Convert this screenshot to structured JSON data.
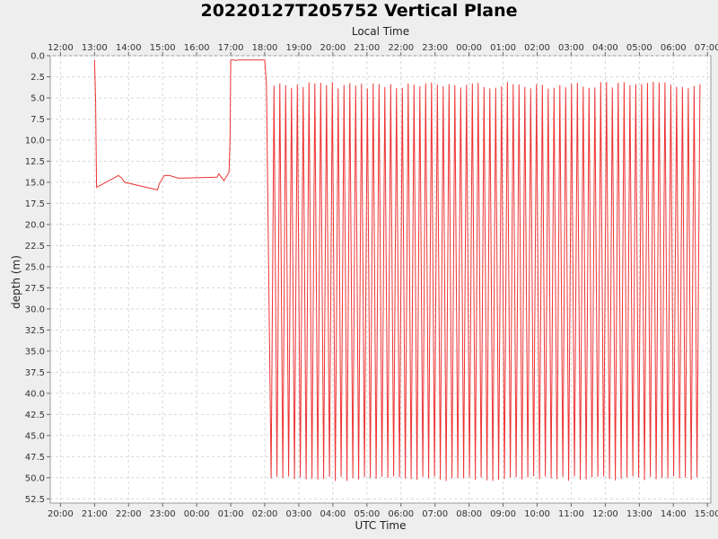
{
  "chart_data": {
    "type": "line",
    "title": "20220127T205752 Vertical Plane",
    "xlabel": "UTC Time",
    "x2label": "Local Time",
    "ylabel": "depth (m)",
    "ylim": [
      0,
      53
    ],
    "y_inverted": true,
    "grid": true,
    "line_color": "#ee3333",
    "x_range_hours": [
      19.7,
      39.1
    ],
    "x_ticks": [
      "20:00",
      "21:00",
      "22:00",
      "23:00",
      "00:00",
      "01:00",
      "02:00",
      "03:00",
      "04:00",
      "05:00",
      "06:00",
      "07:00",
      "08:00",
      "09:00",
      "10:00",
      "11:00",
      "12:00",
      "13:00",
      "14:00",
      "15:00"
    ],
    "x2_ticks": [
      "12:00",
      "13:00",
      "14:00",
      "15:00",
      "16:00",
      "17:00",
      "18:00",
      "19:00",
      "20:00",
      "21:00",
      "22:00",
      "23:00",
      "00:00",
      "01:00",
      "02:00",
      "03:00",
      "04:00",
      "05:00",
      "06:00",
      "07:00"
    ],
    "y_ticks": [
      "0.0",
      "2.5",
      "5.0",
      "7.5",
      "10.0",
      "12.5",
      "15.0",
      "17.5",
      "20.0",
      "22.5",
      "25.0",
      "27.5",
      "30.0",
      "32.5",
      "35.0",
      "37.5",
      "40.0",
      "42.5",
      "45.0",
      "47.5",
      "50.0",
      "52.5"
    ],
    "series": [
      {
        "x_hours_utc": [
          21.0,
          21.03,
          21.06,
          21.7,
          21.8,
          21.88,
          22.85,
          22.9,
          23.05,
          23.2,
          23.45,
          23.6,
          24.6,
          24.65,
          24.8,
          24.95,
          24.98,
          25.0,
          25.1,
          25.15,
          25.2,
          25.3,
          25.5,
          25.8,
          26.0
        ],
        "depth": [
          0.5,
          5.0,
          15.6,
          14.2,
          14.5,
          15.0,
          15.9,
          15.2,
          14.2,
          14.2,
          14.5,
          14.5,
          14.4,
          14.0,
          14.8,
          13.8,
          10.0,
          0.5,
          0.5,
          0.6,
          0.5,
          0.5,
          0.5,
          0.5,
          0.5
        ]
      }
    ],
    "dives": {
      "start_hour_utc": 26.1,
      "end_hour_utc": 38.78,
      "count": 74,
      "surface_depth_m": 3.5,
      "bottom_depth_m": 50.1
    }
  }
}
